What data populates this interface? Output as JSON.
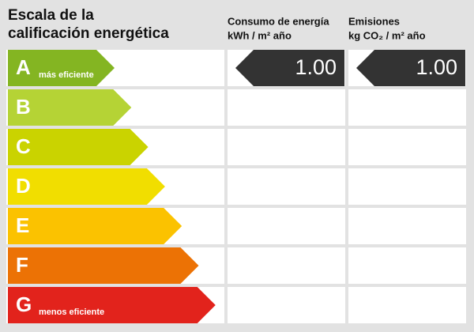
{
  "header": {
    "title": [
      "Escala de la",
      "calificación energética"
    ]
  },
  "columns": [
    {
      "title": "Consumo de energía",
      "unit": "kWh / m² año",
      "value": "1.00"
    },
    {
      "title": "Emisiones",
      "unit": "kg CO₂ / m² año",
      "value": "1.00"
    }
  ],
  "rows": [
    {
      "letter": "A",
      "label": "más eficiente",
      "color": "#84b522"
    },
    {
      "letter": "B",
      "color": "#b5d335"
    },
    {
      "letter": "C",
      "color": "#cad300"
    },
    {
      "letter": "D",
      "color": "#f1de00"
    },
    {
      "letter": "E",
      "color": "#fbc200"
    },
    {
      "letter": "F",
      "color": "#ec7205"
    },
    {
      "letter": "G",
      "label": "menos eficiente",
      "color": "#e2231c"
    }
  ]
}
